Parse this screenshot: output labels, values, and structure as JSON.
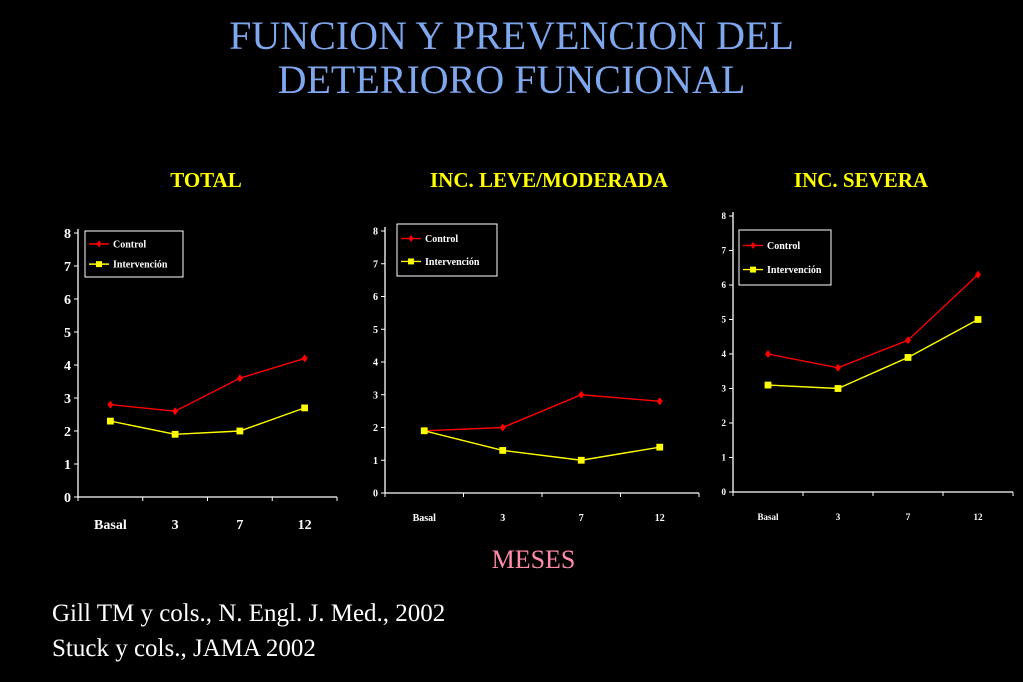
{
  "slide": {
    "title_line1": "FUNCION Y PREVENCION DEL",
    "title_line2": "DETERIORO FUNCIONAL",
    "x_axis_label": "MESES",
    "citations": [
      "Gill TM  y cols., N. Engl. J. Med., 2002",
      "Stuck y cols., JAMA 2002"
    ]
  },
  "colors": {
    "background": "#000000",
    "title": "#7fa7ee",
    "panel_title": "#ffff00",
    "chart_frame": "#ffffff",
    "control": "#ff0000",
    "intervencion": "#ffff00",
    "meses": "#ff8ca6",
    "text": "#ffffff"
  },
  "chart_data": [
    {
      "type": "line",
      "title": "TOTAL",
      "categories": [
        "Basal",
        "3",
        "7",
        "12"
      ],
      "ylim": [
        0,
        8
      ],
      "yticks": [
        0,
        1,
        2,
        3,
        4,
        5,
        6,
        7,
        8
      ],
      "legend": "top-left",
      "grid": false,
      "series": [
        {
          "name": "Control",
          "marker": "diamond",
          "values": [
            2.8,
            2.6,
            3.6,
            4.2
          ]
        },
        {
          "name": "Intervención",
          "marker": "square",
          "values": [
            2.3,
            1.9,
            2.0,
            2.7
          ]
        }
      ]
    },
    {
      "type": "line",
      "title": "INC. LEVE/MODERADA",
      "categories": [
        "Basal",
        "3",
        "7",
        "12"
      ],
      "ylim": [
        0,
        8
      ],
      "yticks": [
        0,
        1,
        2,
        3,
        4,
        5,
        6,
        7,
        8
      ],
      "legend": "top-left",
      "grid": false,
      "series": [
        {
          "name": "Control",
          "marker": "diamond",
          "values": [
            1.9,
            2.0,
            3.0,
            2.8
          ]
        },
        {
          "name": "Intervención",
          "marker": "square",
          "values": [
            1.9,
            1.3,
            1.0,
            1.4
          ]
        }
      ]
    },
    {
      "type": "line",
      "title": "INC. SEVERA",
      "categories": [
        "Basal",
        "3",
        "7",
        "12"
      ],
      "ylim": [
        0,
        8
      ],
      "yticks": [
        0,
        1,
        2,
        3,
        4,
        5,
        6,
        7,
        8
      ],
      "legend": "top-left",
      "grid": false,
      "series": [
        {
          "name": "Control",
          "marker": "diamond",
          "values": [
            4.0,
            3.6,
            4.4,
            6.3
          ]
        },
        {
          "name": "Intervención",
          "marker": "square",
          "values": [
            3.1,
            3.0,
            3.9,
            5.0
          ]
        }
      ]
    }
  ]
}
